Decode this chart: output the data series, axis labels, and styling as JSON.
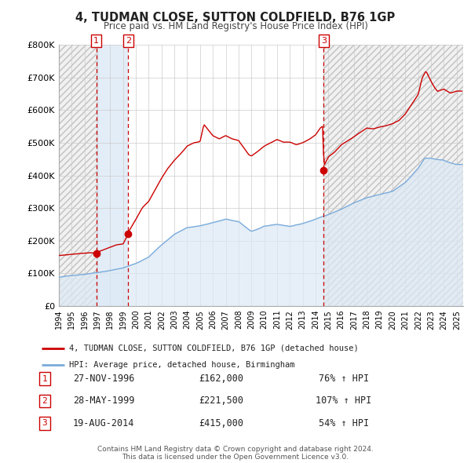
{
  "title": "4, TUDMAN CLOSE, SUTTON COLDFIELD, B76 1GP",
  "subtitle": "Price paid vs. HM Land Registry's House Price Index (HPI)",
  "sale_label": "4, TUDMAN CLOSE, SUTTON COLDFIELD, B76 1GP (detached house)",
  "hpi_label": "HPI: Average price, detached house, Birmingham",
  "footnote1": "Contains HM Land Registry data © Crown copyright and database right 2024.",
  "footnote2": "This data is licensed under the Open Government Licence v3.0.",
  "sales": [
    {
      "date_num": 1996.91,
      "price": 162000,
      "label": "1",
      "date_str": "27-NOV-1996",
      "price_str": "£162,000",
      "pct": "76%",
      "dir": "↑"
    },
    {
      "date_num": 1999.41,
      "price": 221500,
      "label": "2",
      "date_str": "28-MAY-1999",
      "price_str": "£221,500",
      "pct": "107%",
      "dir": "↑"
    },
    {
      "date_num": 2014.63,
      "price": 415000,
      "label": "3",
      "date_str": "19-AUG-2014",
      "price_str": "£415,000",
      "pct": "54%",
      "dir": "↑"
    }
  ],
  "sale_color": "#cc0000",
  "hpi_color": "#7aabdb",
  "hpi_fill_color": "#dce9f5",
  "vline_color": "#cc0000",
  "vband_color": "#dce9f5",
  "ylim": [
    0,
    800000
  ],
  "yticks": [
    0,
    100000,
    200000,
    300000,
    400000,
    500000,
    600000,
    700000,
    800000
  ],
  "ytick_labels": [
    "£0",
    "£100K",
    "£200K",
    "£300K",
    "£400K",
    "£500K",
    "£600K",
    "£700K",
    "£800K"
  ],
  "xmin": 1994.0,
  "xmax": 2025.5,
  "xticks": [
    1994,
    1995,
    1996,
    1997,
    1998,
    1999,
    2000,
    2001,
    2002,
    2003,
    2004,
    2005,
    2006,
    2007,
    2008,
    2009,
    2010,
    2011,
    2012,
    2013,
    2014,
    2015,
    2016,
    2017,
    2018,
    2019,
    2020,
    2021,
    2022,
    2023,
    2024,
    2025
  ],
  "bg_color": "#ffffff",
  "grid_color": "#cccccc",
  "number_box_color": "#cc0000",
  "hatch_color": "#bbbbbb"
}
